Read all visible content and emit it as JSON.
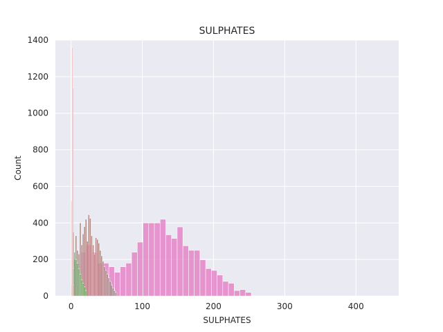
{
  "chart_data": {
    "type": "bar",
    "title": "SULPHATES",
    "xlabel": "SULPHATES",
    "ylabel": "Count",
    "xlim": [
      -22,
      460
    ],
    "ylim": [
      0,
      1400
    ],
    "xticks": [
      0,
      100,
      200,
      300,
      400
    ],
    "yticks": [
      0,
      200,
      400,
      600,
      800,
      1000,
      1200,
      1400
    ],
    "grid": true,
    "legend": "none",
    "colors": {
      "background": "#eaeaf2",
      "grid": "#ffffff",
      "pink": "#e377c2",
      "brown": "#8c564b",
      "green": "#2ca02c",
      "red": "#d62728"
    },
    "series": [
      {
        "color": "pink",
        "opacity": 0.75,
        "bins": [
          [
            5,
            13,
            180
          ],
          [
            13,
            21,
            240
          ],
          [
            21,
            29,
            280
          ],
          [
            29,
            37,
            240
          ],
          [
            37,
            45,
            180
          ],
          [
            45,
            53,
            180
          ],
          [
            53,
            61,
            160
          ],
          [
            61,
            69,
            130
          ],
          [
            69,
            77,
            160
          ],
          [
            77,
            85,
            180
          ],
          [
            85,
            93,
            240
          ],
          [
            93,
            101,
            295
          ],
          [
            101,
            109,
            400
          ],
          [
            109,
            117,
            400
          ],
          [
            117,
            125,
            400
          ],
          [
            125,
            133,
            420
          ],
          [
            133,
            141,
            335
          ],
          [
            141,
            149,
            315
          ],
          [
            149,
            157,
            378
          ],
          [
            157,
            165,
            275
          ],
          [
            165,
            173,
            250
          ],
          [
            173,
            181,
            250
          ],
          [
            181,
            189,
            198
          ],
          [
            189,
            197,
            150
          ],
          [
            197,
            205,
            140
          ],
          [
            205,
            213,
            115
          ],
          [
            213,
            221,
            80
          ],
          [
            221,
            229,
            70
          ],
          [
            229,
            237,
            30
          ],
          [
            237,
            245,
            35
          ],
          [
            245,
            253,
            20
          ]
        ]
      },
      {
        "color": "brown",
        "opacity": 0.7,
        "bins": [
          [
            2,
            4,
            350
          ],
          [
            4,
            6,
            200
          ],
          [
            6,
            8,
            330
          ],
          [
            8,
            10,
            250
          ],
          [
            10,
            12,
            230
          ],
          [
            12,
            14,
            400
          ],
          [
            14,
            16,
            280
          ],
          [
            16,
            18,
            340
          ],
          [
            18,
            20,
            380
          ],
          [
            20,
            22,
            420
          ],
          [
            22,
            24,
            300
          ],
          [
            24,
            26,
            445
          ],
          [
            26,
            28,
            425
          ],
          [
            28,
            30,
            330
          ],
          [
            30,
            32,
            280
          ],
          [
            32,
            34,
            230
          ],
          [
            34,
            36,
            320
          ],
          [
            36,
            38,
            310
          ],
          [
            38,
            40,
            290
          ],
          [
            40,
            42,
            250
          ],
          [
            42,
            44,
            220
          ],
          [
            44,
            46,
            190
          ],
          [
            46,
            48,
            160
          ],
          [
            48,
            50,
            140
          ],
          [
            50,
            52,
            120
          ],
          [
            52,
            54,
            100
          ],
          [
            54,
            56,
            80
          ],
          [
            56,
            58,
            60
          ],
          [
            58,
            60,
            45
          ],
          [
            60,
            62,
            30
          ],
          [
            62,
            64,
            20
          ]
        ]
      },
      {
        "color": "green",
        "opacity": 0.6,
        "bins": [
          [
            0,
            2,
            60
          ],
          [
            2,
            4,
            150
          ],
          [
            4,
            6,
            240
          ],
          [
            6,
            8,
            200
          ],
          [
            8,
            10,
            180
          ],
          [
            10,
            12,
            150
          ],
          [
            12,
            14,
            120
          ],
          [
            14,
            16,
            90
          ],
          [
            16,
            18,
            70
          ],
          [
            18,
            20,
            50
          ],
          [
            20,
            22,
            30
          ]
        ]
      },
      {
        "color": "red",
        "opacity": 0.55,
        "bins": [
          [
            0,
            1,
            520
          ],
          [
            1,
            2,
            1360
          ],
          [
            2,
            3,
            1140
          ],
          [
            3,
            4,
            60
          ]
        ]
      }
    ]
  }
}
